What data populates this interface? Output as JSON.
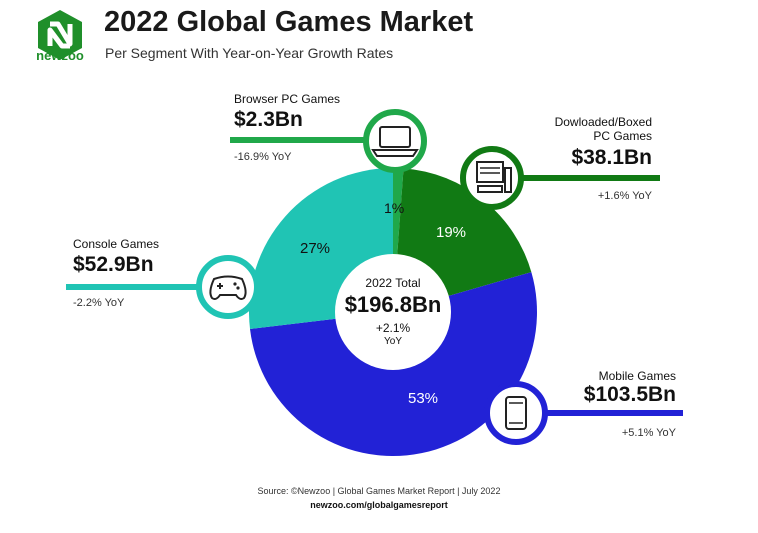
{
  "header": {
    "title": "2022 Global Games Market",
    "subtitle": "Per Segment With Year-on-Year Growth Rates",
    "brand": "newzoo"
  },
  "center": {
    "label": "2022 Total",
    "value": "$196.8Bn",
    "growth": "+2.1%",
    "growth_unit": "YoY"
  },
  "segments": {
    "browser": {
      "name": "Browser PC Games",
      "value": "$2.3Bn",
      "yoy": "-16.9% YoY",
      "share": "1%"
    },
    "downloaded": {
      "name": "Dowloaded/Boxed",
      "name2": "PC Games",
      "value": "$38.1Bn",
      "yoy": "+1.6% YoY",
      "share": "19%"
    },
    "console": {
      "name": "Console Games",
      "value": "$52.9Bn",
      "yoy": "-2.2% YoY",
      "share": "27%"
    },
    "mobile": {
      "name": "Mobile Games",
      "value": "$103.5Bn",
      "yoy": "+5.1% YoY",
      "share": "53%"
    }
  },
  "colors": {
    "browser": "#20a84a",
    "downloaded": "#117a14",
    "mobile": "#2222d6",
    "console": "#20c4b4"
  },
  "icons": {
    "browser": "laptop-icon",
    "downloaded": "desktop-computer-icon",
    "console": "gamepad-icon",
    "mobile": "smartphone-icon"
  },
  "chart_data": {
    "type": "pie",
    "title": "2022 Global Games Market",
    "subtitle": "Per Segment With Year-on-Year Growth Rates",
    "total": 196.8,
    "total_growth_pct": 2.1,
    "series": [
      {
        "name": "Browser PC Games",
        "value": 2.3,
        "share_pct": 1,
        "yoy_pct": -16.9
      },
      {
        "name": "Dowloaded/Boxed PC Games",
        "value": 38.1,
        "share_pct": 19,
        "yoy_pct": 1.6
      },
      {
        "name": "Mobile Games",
        "value": 103.5,
        "share_pct": 53,
        "yoy_pct": 5.1
      },
      {
        "name": "Console Games",
        "value": 52.9,
        "share_pct": 27,
        "yoy_pct": -2.2
      }
    ]
  },
  "footer": {
    "source": "Source: ©Newzoo | Global Games Market Report | July 2022",
    "url": "newzoo.com/globalgamesreport"
  }
}
